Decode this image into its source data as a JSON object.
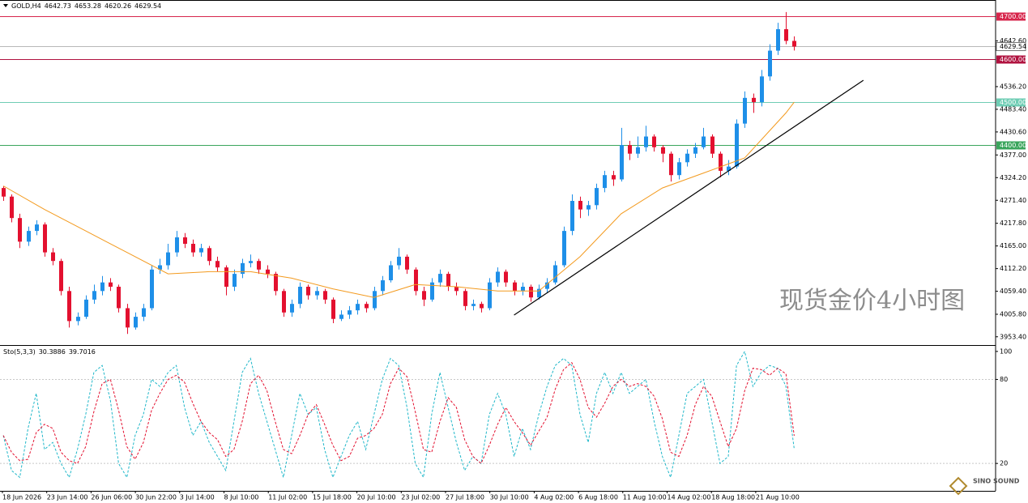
{
  "chart_data": {
    "type": "candlestick",
    "symbol": "GOLD,H4",
    "annotation": "现货金价4小时图",
    "logo": "SINO SOUND",
    "up_color": "#1e8fe8",
    "down_color": "#e3102f",
    "xlim": [
      -0.4,
      120.35
    ],
    "ylim": [
      3936,
      4738
    ],
    "yticks": [
      {
        "value": 3953.4,
        "label": "3953.40"
      },
      {
        "value": 4005.8,
        "label": "4005.80"
      },
      {
        "value": 4059.4,
        "label": "4059.40"
      },
      {
        "value": 4112.2,
        "label": "4112.20"
      },
      {
        "value": 4165,
        "label": "4165.00"
      },
      {
        "value": 4217.8,
        "label": "4217.80"
      },
      {
        "value": 4271.4,
        "label": "4271.40"
      },
      {
        "value": 4324.2,
        "label": "4324.20"
      },
      {
        "value": 4377,
        "label": "4377.00"
      },
      {
        "value": 4430.6,
        "label": "4430.60"
      },
      {
        "value": 4483.4,
        "label": "4483.40"
      },
      {
        "value": 4536.2,
        "label": "4536.20"
      },
      {
        "value": 4642.6,
        "label": "4642.60"
      }
    ],
    "xlabels": [
      "18 Jun 2026",
      "23 Jun 14:00",
      "26 Jun 06:00",
      "30 Jun 22:00",
      "3 Jul 14:00",
      "8 Jul 10:00",
      "11 Jul 02:00",
      "15 Jul 18:00",
      "20 Jul 10:00",
      "23 Jul 02:00",
      "27 Jul 18:00",
      "30 Jul 10:00",
      "4 Aug 02:00",
      "6 Aug 18:00",
      "11 Aug 10:00",
      "14 Aug 02:00",
      "18 Aug 18:00",
      "21 Aug 10:00"
    ],
    "levels": [
      {
        "value": 4700,
        "label": "4700.00",
        "color": "#d7264c"
      },
      {
        "value": 4600,
        "label": "4600.00",
        "color": "#b0123f"
      },
      {
        "value": 4500,
        "label": "4500.00",
        "color": "#6fcdb4"
      },
      {
        "value": 4400,
        "label": "4400.00",
        "color": "#3aa55c"
      }
    ],
    "candles": [
      [
        4300,
        4305,
        4270,
        4280
      ],
      [
        4280,
        4285,
        4220,
        4230
      ],
      [
        4230,
        4240,
        4160,
        4175
      ],
      [
        4175,
        4210,
        4165,
        4200
      ],
      [
        4200,
        4225,
        4190,
        4215
      ],
      [
        4215,
        4220,
        4140,
        4150
      ],
      [
        4150,
        4160,
        4120,
        4130
      ],
      [
        4130,
        4135,
        4050,
        4060
      ],
      [
        4060,
        4070,
        3975,
        3990
      ],
      [
        3990,
        4010,
        3980,
        4000
      ],
      [
        4000,
        4050,
        3995,
        4040
      ],
      [
        4040,
        4075,
        4030,
        4060
      ],
      [
        4060,
        4095,
        4050,
        4080
      ],
      [
        4080,
        4090,
        4060,
        4070
      ],
      [
        4070,
        4075,
        4010,
        4020
      ],
      [
        4020,
        4030,
        3960,
        3975
      ],
      [
        3975,
        4010,
        3970,
        4000
      ],
      [
        4000,
        4030,
        3990,
        4020
      ],
      [
        4020,
        4120,
        4015,
        4110
      ],
      [
        4110,
        4135,
        4100,
        4120
      ],
      [
        4120,
        4170,
        4110,
        4150
      ],
      [
        4150,
        4200,
        4140,
        4185
      ],
      [
        4185,
        4195,
        4160,
        4170
      ],
      [
        4170,
        4180,
        4140,
        4150
      ],
      [
        4150,
        4170,
        4140,
        4160
      ],
      [
        4160,
        4165,
        4120,
        4130
      ],
      [
        4130,
        4140,
        4105,
        4115
      ],
      [
        4115,
        4120,
        4050,
        4070
      ],
      [
        4070,
        4110,
        4060,
        4100
      ],
      [
        4100,
        4135,
        4090,
        4125
      ],
      [
        4125,
        4145,
        4115,
        4130
      ],
      [
        4130,
        4135,
        4100,
        4110
      ],
      [
        4110,
        4120,
        4090,
        4100
      ],
      [
        4100,
        4105,
        4050,
        4060
      ],
      [
        4060,
        4065,
        4000,
        4010
      ],
      [
        4010,
        4040,
        4000,
        4030
      ],
      [
        4030,
        4080,
        4020,
        4070
      ],
      [
        4070,
        4075,
        4040,
        4050
      ],
      [
        4050,
        4070,
        4040,
        4060
      ],
      [
        4060,
        4065,
        4030,
        4040
      ],
      [
        4040,
        4045,
        3985,
        3995
      ],
      [
        3995,
        4015,
        3990,
        4005
      ],
      [
        4005,
        4025,
        3995,
        4015
      ],
      [
        4015,
        4040,
        4005,
        4030
      ],
      [
        4030,
        4035,
        4010,
        4020
      ],
      [
        4020,
        4070,
        4015,
        4060
      ],
      [
        4060,
        4095,
        4050,
        4085
      ],
      [
        4085,
        4130,
        4080,
        4120
      ],
      [
        4120,
        4160,
        4110,
        4140
      ],
      [
        4140,
        4145,
        4100,
        4110
      ],
      [
        4110,
        4115,
        4050,
        4060
      ],
      [
        4060,
        4070,
        4025,
        4040
      ],
      [
        4040,
        4090,
        4035,
        4080
      ],
      [
        4080,
        4110,
        4070,
        4100
      ],
      [
        4100,
        4105,
        4060,
        4070
      ],
      [
        4070,
        4080,
        4050,
        4060
      ],
      [
        4060,
        4065,
        4015,
        4025
      ],
      [
        4025,
        4040,
        4015,
        4030
      ],
      [
        4030,
        4035,
        4010,
        4020
      ],
      [
        4020,
        4090,
        4015,
        4080
      ],
      [
        4080,
        4115,
        4070,
        4105
      ],
      [
        4105,
        4110,
        4070,
        4080
      ],
      [
        4080,
        4085,
        4050,
        4060
      ],
      [
        4060,
        4080,
        4050,
        4070
      ],
      [
        4070,
        4075,
        4035,
        4045
      ],
      [
        4045,
        4075,
        4040,
        4065
      ],
      [
        4065,
        4090,
        4055,
        4080
      ],
      [
        4080,
        4130,
        4075,
        4120
      ],
      [
        4120,
        4210,
        4115,
        4200
      ],
      [
        4200,
        4285,
        4190,
        4270
      ],
      [
        4270,
        4280,
        4230,
        4250
      ],
      [
        4250,
        4270,
        4235,
        4260
      ],
      [
        4260,
        4310,
        4250,
        4300
      ],
      [
        4300,
        4340,
        4290,
        4330
      ],
      [
        4330,
        4340,
        4305,
        4320
      ],
      [
        4320,
        4440,
        4315,
        4400
      ],
      [
        4400,
        4410,
        4365,
        4380
      ],
      [
        4380,
        4420,
        4370,
        4395
      ],
      [
        4395,
        4445,
        4385,
        4420
      ],
      [
        4420,
        4425,
        4385,
        4395
      ],
      [
        4395,
        4400,
        4360,
        4380
      ],
      [
        4380,
        4385,
        4315,
        4330
      ],
      [
        4330,
        4370,
        4320,
        4360
      ],
      [
        4360,
        4390,
        4350,
        4380
      ],
      [
        4380,
        4405,
        4370,
        4395
      ],
      [
        4395,
        4440,
        4390,
        4420
      ],
      [
        4420,
        4425,
        4370,
        4380
      ],
      [
        4380,
        4385,
        4325,
        4340
      ],
      [
        4340,
        4365,
        4330,
        4350
      ],
      [
        4350,
        4460,
        4345,
        4450
      ],
      [
        4450,
        4525,
        4440,
        4510
      ],
      [
        4510,
        4520,
        4475,
        4500
      ],
      [
        4500,
        4575,
        4490,
        4560
      ],
      [
        4560,
        4635,
        4550,
        4620
      ],
      [
        4620,
        4685,
        4610,
        4670
      ],
      [
        4670,
        4710,
        4635,
        4642.73
      ],
      [
        4642.73,
        4653.28,
        4620.26,
        4629.54
      ]
    ],
    "ma": {
      "color": "#f39a1e",
      "x": [
        0,
        5,
        10,
        15,
        20,
        25,
        30,
        35,
        40,
        45,
        50,
        55,
        60,
        65,
        70,
        75,
        80,
        85,
        90,
        95,
        96
      ],
      "values": [
        4305,
        4250,
        4200,
        4150,
        4100,
        4105,
        4105,
        4090,
        4065,
        4045,
        4075,
        4070,
        4060,
        4060,
        4140,
        4240,
        4300,
        4335,
        4370,
        4475,
        4500
      ]
    },
    "trendline": {
      "color": "#000000",
      "x": [
        62,
        104.4
      ],
      "values": [
        4004,
        4551
      ]
    },
    "stochastic": {
      "name": "Sto(5,3,3)",
      "ylim": [
        1,
        103.4
      ],
      "yticks": [
        100,
        80,
        20
      ],
      "k": {
        "color": "#1fb7c9",
        "values": [
          40,
          15,
          10,
          45,
          70,
          30,
          35,
          20,
          10,
          30,
          55,
          85,
          90,
          65,
          20,
          10,
          40,
          55,
          80,
          75,
          85,
          90,
          60,
          40,
          50,
          35,
          25,
          15,
          50,
          85,
          95,
          70,
          50,
          30,
          10,
          40,
          70,
          55,
          60,
          30,
          10,
          25,
          40,
          50,
          30,
          55,
          80,
          95,
          90,
          60,
          20,
          10,
          55,
          85,
          60,
          35,
          15,
          25,
          20,
          55,
          70,
          55,
          25,
          45,
          30,
          55,
          75,
          90,
          95,
          90,
          55,
          35,
          70,
          85,
          70,
          85,
          70,
          75,
          80,
          50,
          25,
          10,
          40,
          70,
          75,
          80,
          50,
          20,
          25,
          90,
          100,
          75,
          85,
          90,
          88,
          75,
          30.3886
        ]
      },
      "d": {
        "color": "#e3102f",
        "values": [
          40,
          28,
          22,
          23,
          42,
          48,
          45,
          28,
          22,
          20,
          32,
          57,
          77,
          80,
          58,
          32,
          23,
          35,
          58,
          70,
          80,
          83,
          78,
          63,
          50,
          42,
          37,
          25,
          30,
          50,
          77,
          83,
          72,
          50,
          30,
          27,
          40,
          55,
          62,
          48,
          33,
          22,
          25,
          38,
          40,
          45,
          55,
          77,
          88,
          82,
          57,
          30,
          28,
          50,
          67,
          60,
          37,
          25,
          20,
          33,
          48,
          60,
          50,
          42,
          33,
          43,
          53,
          73,
          87,
          92,
          80,
          60,
          53,
          63,
          75,
          80,
          75,
          77,
          75,
          68,
          52,
          28,
          25,
          40,
          62,
          75,
          68,
          50,
          32,
          45,
          72,
          88,
          87,
          83,
          88,
          84,
          39.7016
        ]
      }
    }
  }
}
